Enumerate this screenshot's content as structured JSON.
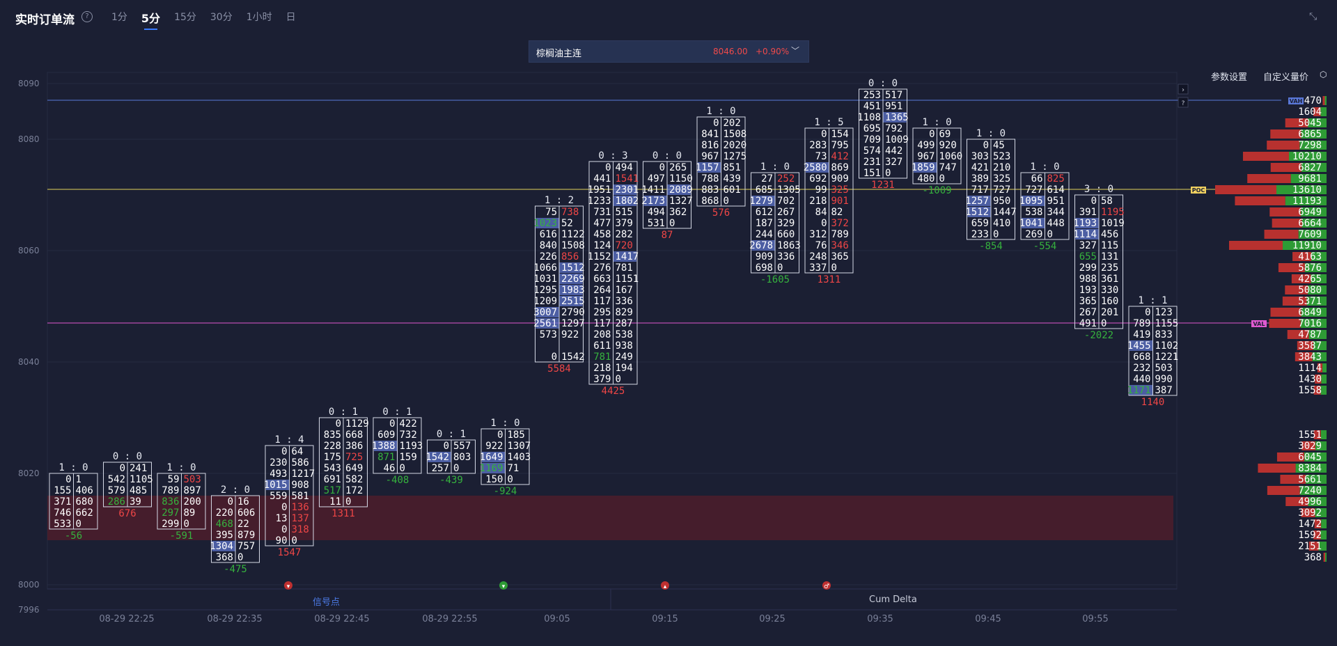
{
  "header": {
    "title": "实时订单流",
    "timeframes": [
      {
        "label": "1分"
      },
      {
        "label": "5分",
        "active": true
      },
      {
        "label": "15分"
      },
      {
        "label": "30分"
      },
      {
        "label": "1小时"
      },
      {
        "label": "日"
      }
    ]
  },
  "instrument": {
    "name": "棕榈油主连",
    "price": "8046.00",
    "change": "+0.90%"
  },
  "toolbar": {
    "settings": "参数设置",
    "custom_volume": "自定义量价"
  },
  "bottom_tabs": {
    "signal": "信号点",
    "cum_delta": "Cum Delta"
  },
  "colors": {
    "background": "#1b1f33",
    "bid_green": "#2e9b35",
    "ask_red": "#d94141",
    "highlight": "#6f86d9",
    "poc_line": "#e0d05a",
    "val_line": "#e05ad0",
    "vah_line": "#5a78d8"
  },
  "chart_data": {
    "type": "footprint",
    "y_axis": {
      "ticks": [
        8090,
        8080,
        8060,
        8040,
        8020,
        8000,
        7996
      ],
      "range": [
        7996,
        8092
      ]
    },
    "x_axis": {
      "ticks": [
        "08-29 22:25",
        "08-29 22:35",
        "08-29 22:45",
        "08-29 22:55",
        "09:05",
        "09:15",
        "09:25",
        "09:35",
        "09:45",
        "09:55"
      ]
    },
    "lines": {
      "VAH": 8087,
      "POC": 8071,
      "VAL": 8047
    },
    "zone": {
      "from": 8008,
      "to": 8016
    },
    "candles": [
      {
        "ratio": "1 : 0",
        "top": 8019,
        "rows": [
          [
            "0",
            "1"
          ],
          [
            "155",
            "406"
          ],
          [
            "371",
            "680"
          ],
          [
            "746",
            "662"
          ],
          [
            "533",
            "0"
          ]
        ],
        "delta": "-56"
      },
      {
        "ratio": "0 : 0",
        "top": 8021,
        "rows": [
          [
            "0",
            "241"
          ],
          [
            "542",
            "1105"
          ],
          [
            "579",
            "485"
          ],
          [
            "286",
            "39"
          ]
        ],
        "delta": "676"
      },
      {
        "ratio": "1 : 0",
        "top": 8019,
        "rows": [
          [
            "59",
            "503"
          ],
          [
            "789",
            "897"
          ],
          [
            "836",
            "200"
          ],
          [
            "297",
            "89"
          ],
          [
            "299",
            "0"
          ]
        ],
        "delta": "-591"
      },
      {
        "ratio": "2 : 0",
        "top": 8015,
        "rows": [
          [
            "0",
            "16"
          ],
          [
            "220",
            "606"
          ],
          [
            "468",
            "22"
          ],
          [
            "395",
            "879"
          ],
          [
            "1304",
            "757"
          ],
          [
            "368",
            "0"
          ]
        ],
        "delta": "-475"
      },
      {
        "ratio": "1 : 4",
        "top": 8024,
        "rows": [
          [
            "0",
            "64"
          ],
          [
            "230",
            "586"
          ],
          [
            "493",
            "1217"
          ],
          [
            "1015",
            "908"
          ],
          [
            "559",
            "581"
          ],
          [
            "0",
            "136"
          ],
          [
            "13",
            "137"
          ],
          [
            "0",
            "318"
          ],
          [
            "90",
            "0"
          ]
        ],
        "delta": "1547"
      },
      {
        "ratio": "0 : 1",
        "top": 8029,
        "rows": [
          [
            "0",
            "1129"
          ],
          [
            "835",
            "668"
          ],
          [
            "228",
            "386"
          ],
          [
            "175",
            "725"
          ],
          [
            "543",
            "649"
          ],
          [
            "691",
            "582"
          ],
          [
            "517",
            "172"
          ],
          [
            "11",
            "0"
          ]
        ],
        "delta": "1311"
      },
      {
        "ratio": "0 : 1",
        "top": 8029,
        "rows": [
          [
            "0",
            "422"
          ],
          [
            "609",
            "732"
          ],
          [
            "1388",
            "1193"
          ],
          [
            "871",
            "159"
          ],
          [
            "46",
            "0"
          ]
        ],
        "delta": "-408"
      },
      {
        "ratio": "0 : 1",
        "top": 8025,
        "rows": [
          [
            "0",
            "557"
          ],
          [
            "1542",
            "803"
          ],
          [
            "257",
            "0"
          ]
        ],
        "delta": "-439"
      },
      {
        "ratio": "1 : 0",
        "top": 8027,
        "rows": [
          [
            "0",
            "185"
          ],
          [
            "922",
            "1307"
          ],
          [
            "1649",
            "1403"
          ],
          [
            "1169",
            "71"
          ],
          [
            "150",
            "0"
          ]
        ],
        "delta": "-924"
      },
      {
        "ratio": "1 : 2",
        "top": 8067,
        "rows": [
          [
            "75",
            "738"
          ],
          [
            "1023",
            "52"
          ],
          [
            "616",
            "1122"
          ],
          [
            "840",
            "1508"
          ],
          [
            "226",
            "856"
          ],
          [
            "1066",
            "1512"
          ],
          [
            "1031",
            "2269"
          ],
          [
            "1295",
            "1983"
          ],
          [
            "1209",
            "2515"
          ],
          [
            "3007",
            "2790"
          ],
          [
            "2561",
            "1297"
          ],
          [
            "573",
            "922"
          ],
          [
            "",
            ""
          ],
          [
            "0",
            "1542"
          ]
        ],
        "delta": "5584"
      },
      {
        "ratio": "0 : 3",
        "top": 8075,
        "rows": [
          [
            "0",
            "494"
          ],
          [
            "441",
            "1541"
          ],
          [
            "1951",
            "2301"
          ],
          [
            "1233",
            "1802"
          ],
          [
            "731",
            "515"
          ],
          [
            "477",
            "379"
          ],
          [
            "458",
            "282"
          ],
          [
            "124",
            "720"
          ],
          [
            "1152",
            "1417"
          ],
          [
            "276",
            "781"
          ],
          [
            "663",
            "1151"
          ],
          [
            "264",
            "167"
          ],
          [
            "117",
            "336"
          ],
          [
            "295",
            "829"
          ],
          [
            "117",
            "287"
          ],
          [
            "208",
            "538"
          ],
          [
            "611",
            "938"
          ],
          [
            "781",
            "249"
          ],
          [
            "218",
            "194"
          ],
          [
            "379",
            "0"
          ]
        ],
        "delta": "4425"
      },
      {
        "ratio": "0 : 0",
        "top": 8075,
        "rows": [
          [
            "0",
            "265"
          ],
          [
            "497",
            "1150"
          ],
          [
            "1411",
            "2089"
          ],
          [
            "2173",
            "1327"
          ],
          [
            "494",
            "362"
          ],
          [
            "531",
            "0"
          ]
        ],
        "delta": "87"
      },
      {
        "ratio": "1 : 0",
        "top": 8083,
        "rows": [
          [
            "0",
            "202"
          ],
          [
            "841",
            "1508"
          ],
          [
            "816",
            "2020"
          ],
          [
            "967",
            "1275"
          ],
          [
            "1157",
            "851"
          ],
          [
            "788",
            "439"
          ],
          [
            "883",
            "601"
          ],
          [
            "868",
            "0"
          ]
        ],
        "delta": "576"
      },
      {
        "ratio": "1 : 0",
        "top": 8073,
        "rows": [
          [
            "27",
            "252"
          ],
          [
            "685",
            "1305"
          ],
          [
            "1279",
            "702"
          ],
          [
            "612",
            "267"
          ],
          [
            "187",
            "329"
          ],
          [
            "244",
            "660"
          ],
          [
            "2678",
            "1863"
          ],
          [
            "909",
            "336"
          ],
          [
            "698",
            "0"
          ]
        ],
        "delta": "-1605"
      },
      {
        "ratio": "1 : 5",
        "top": 8081,
        "rows": [
          [
            "0",
            "154"
          ],
          [
            "283",
            "795"
          ],
          [
            "73",
            "412"
          ],
          [
            "2580",
            "869"
          ],
          [
            "692",
            "909"
          ],
          [
            "99",
            "325"
          ],
          [
            "218",
            "901"
          ],
          [
            "84",
            "82"
          ],
          [
            "0",
            "372"
          ],
          [
            "312",
            "789"
          ],
          [
            "76",
            "346"
          ],
          [
            "248",
            "365"
          ],
          [
            "337",
            "0"
          ]
        ],
        "delta": "1311"
      },
      {
        "ratio": "0 : 0",
        "top": 8088,
        "rows": [
          [
            "253",
            "517"
          ],
          [
            "451",
            "951"
          ],
          [
            "1108",
            "1365"
          ],
          [
            "695",
            "792"
          ],
          [
            "709",
            "1009"
          ],
          [
            "574",
            "442"
          ],
          [
            "231",
            "327"
          ],
          [
            "151",
            "0"
          ]
        ],
        "delta": "1231"
      },
      {
        "ratio": "1 : 0",
        "top": 8081,
        "rows": [
          [
            "0",
            "69"
          ],
          [
            "499",
            "920"
          ],
          [
            "967",
            "1060"
          ],
          [
            "1859",
            "747"
          ],
          [
            "480",
            "0"
          ]
        ],
        "delta": "-1009"
      },
      {
        "ratio": "1 : 0",
        "top": 8079,
        "rows": [
          [
            "0",
            "45"
          ],
          [
            "303",
            "523"
          ],
          [
            "421",
            "210"
          ],
          [
            "389",
            "325"
          ],
          [
            "717",
            "727"
          ],
          [
            "1257",
            "950"
          ],
          [
            "1512",
            "1447"
          ],
          [
            "659",
            "410"
          ],
          [
            "233",
            "0"
          ]
        ],
        "delta": "-854"
      },
      {
        "ratio": "1 : 0",
        "top": 8073,
        "rows": [
          [
            "66",
            "825"
          ],
          [
            "727",
            "614"
          ],
          [
            "1095",
            "951"
          ],
          [
            "538",
            "344"
          ],
          [
            "1041",
            "448"
          ],
          [
            "269",
            "0"
          ]
        ],
        "delta": "-554"
      },
      {
        "ratio": "3 : 0",
        "top": 8069,
        "rows": [
          [
            "0",
            "58"
          ],
          [
            "391",
            "1195"
          ],
          [
            "1193",
            "1019"
          ],
          [
            "1114",
            "456"
          ],
          [
            "327",
            "115"
          ],
          [
            "655",
            "131"
          ],
          [
            "299",
            "235"
          ],
          [
            "988",
            "361"
          ],
          [
            "193",
            "330"
          ],
          [
            "365",
            "160"
          ],
          [
            "267",
            "201"
          ],
          [
            "491",
            "0"
          ]
        ],
        "delta": "-2022"
      },
      {
        "ratio": "1 : 1",
        "top": 8049,
        "rows": [
          [
            "0",
            "123"
          ],
          [
            "789",
            "1155"
          ],
          [
            "419",
            "833"
          ],
          [
            "1455",
            "1102"
          ],
          [
            "668",
            "1221"
          ],
          [
            "232",
            "503"
          ],
          [
            "440",
            "990"
          ],
          [
            "1171",
            "387"
          ]
        ],
        "delta": "1140"
      }
    ],
    "profile": [
      {
        "price": 8087,
        "value": "470",
        "label": "VAH"
      },
      {
        "price": 8085,
        "value": "1604"
      },
      {
        "price": 8083,
        "value": "5045"
      },
      {
        "price": 8081,
        "value": "6865"
      },
      {
        "price": 8079,
        "value": "7298"
      },
      {
        "price": 8077,
        "value": "10210"
      },
      {
        "price": 8075,
        "value": "6827"
      },
      {
        "price": 8073,
        "value": "9681"
      },
      {
        "price": 8071,
        "value": "13610",
        "label": "POC"
      },
      {
        "price": 8069,
        "value": "11193"
      },
      {
        "price": 8067,
        "value": "6949"
      },
      {
        "price": 8065,
        "value": "6664"
      },
      {
        "price": 8063,
        "value": "7609"
      },
      {
        "price": 8061,
        "value": "11910"
      },
      {
        "price": 8059,
        "value": "4163"
      },
      {
        "price": 8057,
        "value": "5876"
      },
      {
        "price": 8055,
        "value": "4265"
      },
      {
        "price": 8053,
        "value": "5080"
      },
      {
        "price": 8051,
        "value": "5371"
      },
      {
        "price": 8049,
        "value": "6849"
      },
      {
        "price": 8047,
        "value": "7016",
        "label": "VAL"
      },
      {
        "price": 8045,
        "value": "4787"
      },
      {
        "price": 8043,
        "value": "3587"
      },
      {
        "price": 8041,
        "value": "3843"
      },
      {
        "price": 8039,
        "value": "1114"
      },
      {
        "price": 8037,
        "value": "1430"
      },
      {
        "price": 8035,
        "value": "1558"
      },
      {
        "price": 8027,
        "value": "1551"
      },
      {
        "price": 8025,
        "value": "3029"
      },
      {
        "price": 8023,
        "value": "6045"
      },
      {
        "price": 8021,
        "value": "8384"
      },
      {
        "price": 8019,
        "value": "5661"
      },
      {
        "price": 8017,
        "value": "7240"
      },
      {
        "price": 8015,
        "value": "4996"
      },
      {
        "price": 8013,
        "value": "3092"
      },
      {
        "price": 8011,
        "value": "1472"
      },
      {
        "price": 8009,
        "value": "1592"
      },
      {
        "price": 8007,
        "value": "2151"
      },
      {
        "price": 8005,
        "value": "368"
      }
    ],
    "signals": [
      {
        "x_index": 4,
        "kind": "down"
      },
      {
        "x_index": 8,
        "kind": "down-green"
      },
      {
        "x_index": 11,
        "kind": "up"
      },
      {
        "x_index": 14,
        "kind": "other"
      }
    ]
  }
}
